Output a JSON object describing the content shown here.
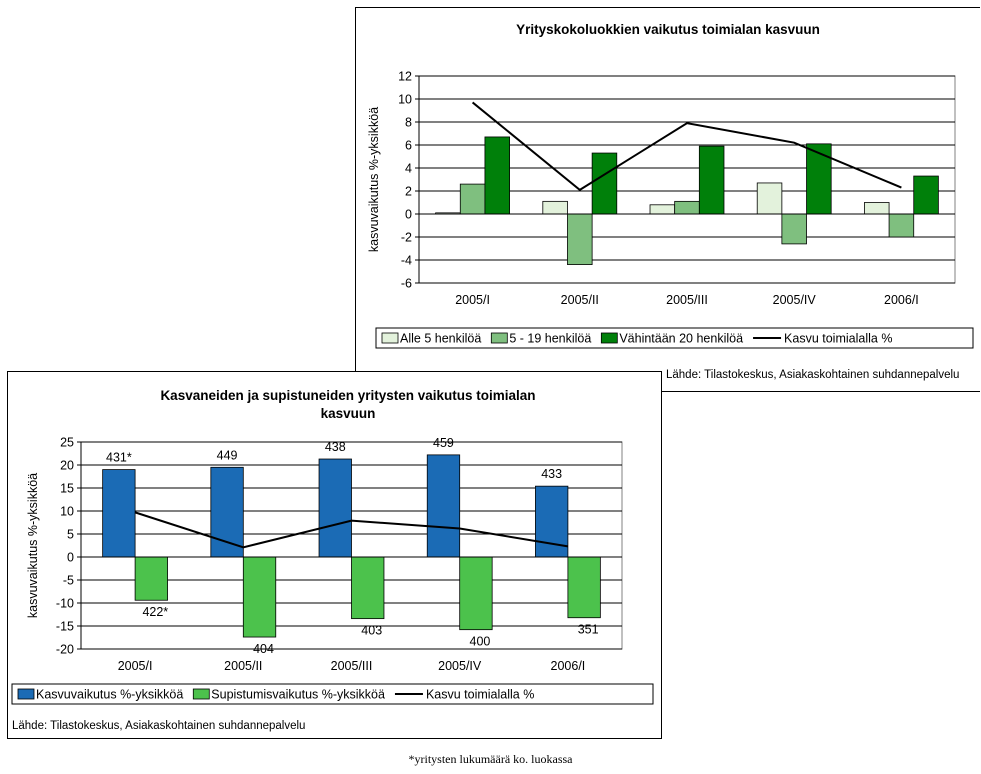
{
  "chart_data": [
    {
      "type": "bar",
      "title": "Yrityskokoluokkien vaikutus toimialan kasvuun",
      "ylabel": "kasvuvaikutus %-yksikköä",
      "ylim": [
        -6,
        12
      ],
      "yticks": [
        "12",
        "10",
        "8",
        "6",
        "4",
        "2",
        "0",
        "-2",
        "-4",
        "-6"
      ],
      "grid": true,
      "legend_position": "bottom",
      "categories": [
        "2005/I",
        "2005/II",
        "2005/III",
        "2005/IV",
        "2006/I"
      ],
      "series": [
        {
          "name": "Alle 5 henkilöä",
          "kind": "bar",
          "color": "#e3f2dc",
          "values": [
            0.1,
            1.1,
            0.8,
            2.7,
            1.0
          ]
        },
        {
          "name": "5 - 19 henkilöä",
          "kind": "bar",
          "color": "#7fbf7f",
          "values": [
            2.6,
            -4.4,
            1.1,
            -2.6,
            -2.0
          ]
        },
        {
          "name": "Vähintään 20 henkilöä",
          "kind": "bar",
          "color": "#00800a",
          "values": [
            6.7,
            5.3,
            5.9,
            6.1,
            3.3
          ]
        },
        {
          "name": "Kasvu toimialalla %",
          "kind": "line",
          "color": "#000000",
          "values": [
            9.7,
            2.1,
            7.9,
            6.2,
            2.3
          ]
        }
      ],
      "source": "Lähde: Tilastokeskus, Asiakaskohtainen suhdannepalvelu"
    },
    {
      "type": "bar",
      "title": "Kasvaneiden ja supistuneiden yritysten vaikutus toimialan kasvuun",
      "ylabel": "kasvuvaikutus %-yksikköä",
      "ylim": [
        -20,
        25
      ],
      "yticks": [
        "25",
        "20",
        "15",
        "10",
        "5",
        "0",
        "-5",
        "-10",
        "-15",
        "-20"
      ],
      "grid": true,
      "legend_position": "bottom",
      "categories": [
        "2005/I",
        "2005/II",
        "2005/III",
        "2005/IV",
        "2006/I"
      ],
      "series": [
        {
          "name": "Kasvuvaikutus %-yksikköä",
          "kind": "bar",
          "color": "#1b6bb5",
          "values": [
            19.0,
            19.5,
            21.3,
            22.2,
            15.4
          ],
          "labels": [
            "431*",
            "449",
            "438",
            "459",
            "433"
          ]
        },
        {
          "name": "Supistumisvaikutus %-yksikköä",
          "kind": "bar",
          "color": "#4cc24c",
          "values": [
            -9.4,
            -17.4,
            -13.4,
            -15.8,
            -13.2
          ],
          "labels": [
            "422*",
            "404",
            "403",
            "400",
            "351"
          ]
        },
        {
          "name": "Kasvu toimialalla %",
          "kind": "line",
          "color": "#000000",
          "values": [
            9.7,
            2.1,
            7.9,
            6.2,
            2.3
          ]
        }
      ],
      "source": "Lähde: Tilastokeskus, Asiakaskohtainen suhdannepalvelu"
    }
  ],
  "footnote": "*yritysten lukumäärä ko. luokassa"
}
